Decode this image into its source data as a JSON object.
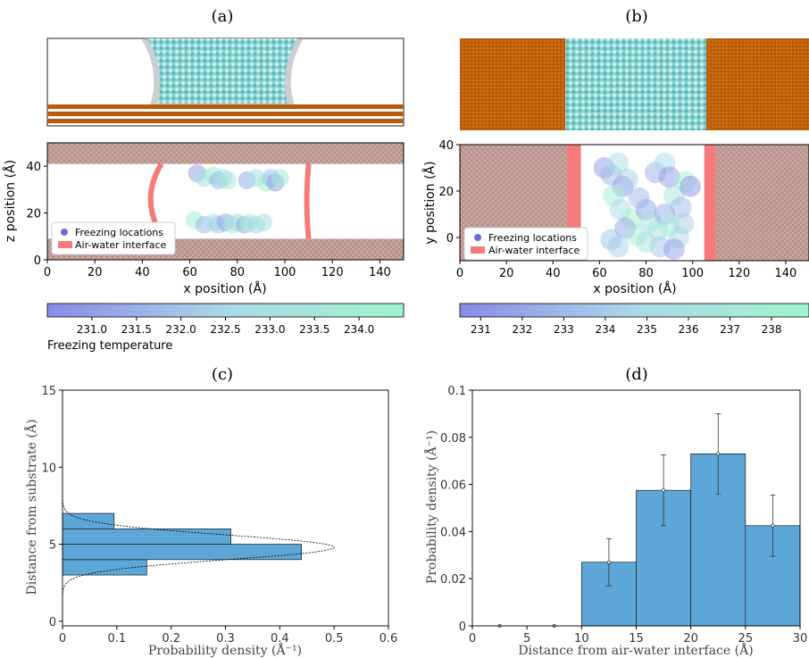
{
  "chart_data": [
    {
      "panel": "(a)",
      "type": "scatter",
      "xlabel": "x position (Å)",
      "ylabel": "z position (Å)",
      "xlim": [
        0,
        150
      ],
      "ylim": [
        0,
        50
      ],
      "xticks": [
        0,
        20,
        40,
        60,
        80,
        100,
        120,
        140
      ],
      "yticks": [
        0,
        20,
        40
      ],
      "legend_position": "lower-left",
      "legend": [
        "Freezing locations",
        "Air-water interface"
      ],
      "colorbar": {
        "label": "Freezing temperature",
        "min": 230.5,
        "max": 234.5,
        "ticks": [
          "231.0",
          "231.5",
          "232.0",
          "232.5",
          "233.0",
          "233.5",
          "234.0"
        ],
        "colors": [
          "#8a8ae8",
          "#aad8e8",
          "#a0f5cc"
        ]
      },
      "interface_color": "#f36363",
      "substrate_color": "#c9a59f",
      "points": [
        {
          "x": 63,
          "z": 37,
          "t": 231.2
        },
        {
          "x": 66,
          "z": 35,
          "t": 232.9
        },
        {
          "x": 70,
          "z": 36,
          "t": 234.1
        },
        {
          "x": 72,
          "z": 34,
          "t": 231.6
        },
        {
          "x": 74,
          "z": 35,
          "t": 232.5
        },
        {
          "x": 76,
          "z": 34,
          "t": 233.6
        },
        {
          "x": 84,
          "z": 34,
          "t": 231.4
        },
        {
          "x": 88,
          "z": 35,
          "t": 233.1
        },
        {
          "x": 92,
          "z": 33,
          "t": 234.2
        },
        {
          "x": 94,
          "z": 35,
          "t": 232.0
        },
        {
          "x": 96,
          "z": 33,
          "t": 231.1
        },
        {
          "x": 98,
          "z": 35,
          "t": 233.8
        },
        {
          "x": 62,
          "z": 17,
          "t": 234.3
        },
        {
          "x": 66,
          "z": 15,
          "t": 231.8
        },
        {
          "x": 70,
          "z": 16,
          "t": 233.2
        },
        {
          "x": 72,
          "z": 15,
          "t": 232.2
        },
        {
          "x": 75,
          "z": 16,
          "t": 231.3
        },
        {
          "x": 78,
          "z": 15,
          "t": 233.9
        },
        {
          "x": 80,
          "z": 16,
          "t": 232.7
        },
        {
          "x": 83,
          "z": 15,
          "t": 231.5
        },
        {
          "x": 85,
          "z": 16,
          "t": 234.0
        },
        {
          "x": 88,
          "z": 15,
          "t": 232.4
        },
        {
          "x": 91,
          "z": 16,
          "t": 233.4
        }
      ],
      "interfaces": [
        {
          "side": "left",
          "x_top": 48,
          "x_mid": 43,
          "x_bot": 49,
          "z_top": 41,
          "z_bot": 9
        },
        {
          "side": "right",
          "x_top": 110,
          "x_mid": 104,
          "x_bot": 110,
          "z_top": 41,
          "z_bot": 9
        }
      ],
      "substrates": [
        [
          0,
          9
        ],
        [
          41,
          50
        ]
      ]
    },
    {
      "panel": "(b)",
      "type": "scatter",
      "xlabel": "x position (Å)",
      "ylabel": "y position (Å)",
      "xlim": [
        0,
        150
      ],
      "ylim": [
        -10,
        40
      ],
      "xticks": [
        0,
        20,
        40,
        60,
        80,
        100,
        120,
        140
      ],
      "yticks": [
        0,
        20,
        40
      ],
      "legend_position": "lower-left",
      "legend": [
        "Freezing locations",
        "Air-water interface"
      ],
      "colorbar": {
        "min": 230.5,
        "max": 238.9,
        "ticks": [
          "231",
          "232",
          "233",
          "234",
          "235",
          "236",
          "237",
          "238"
        ],
        "colors": [
          "#8a8ae8",
          "#aad8e8",
          "#a0f5cc"
        ]
      },
      "interface_bands": [
        [
          46,
          52
        ],
        [
          105,
          110
        ]
      ],
      "substrates": [
        [
          0,
          46
        ],
        [
          110,
          150
        ]
      ],
      "points": [
        {
          "x": 62,
          "y": 30,
          "t": 231.5
        },
        {
          "x": 65,
          "y": 27,
          "t": 233.0
        },
        {
          "x": 68,
          "y": 32,
          "t": 236.2
        },
        {
          "x": 70,
          "y": 22,
          "t": 231.2
        },
        {
          "x": 72,
          "y": 25,
          "t": 234.1
        },
        {
          "x": 66,
          "y": 18,
          "t": 237.5
        },
        {
          "x": 69,
          "y": 12,
          "t": 235.0
        },
        {
          "x": 74,
          "y": 8,
          "t": 238.3
        },
        {
          "x": 71,
          "y": 4,
          "t": 232.0
        },
        {
          "x": 76,
          "y": 1,
          "t": 236.8
        },
        {
          "x": 68,
          "y": -4,
          "t": 234.5
        },
        {
          "x": 65,
          "y": -1,
          "t": 233.6
        },
        {
          "x": 80,
          "y": 12,
          "t": 231.8
        },
        {
          "x": 82,
          "y": 7,
          "t": 235.7
        },
        {
          "x": 85,
          "y": 3,
          "t": 237.0
        },
        {
          "x": 84,
          "y": 28,
          "t": 232.6
        },
        {
          "x": 88,
          "y": 32,
          "t": 234.9
        },
        {
          "x": 90,
          "y": 26,
          "t": 231.4
        },
        {
          "x": 92,
          "y": 18,
          "t": 236.0
        },
        {
          "x": 95,
          "y": 13,
          "t": 233.3
        },
        {
          "x": 97,
          "y": 24,
          "t": 238.0
        },
        {
          "x": 99,
          "y": 22,
          "t": 231.1
        },
        {
          "x": 88,
          "y": 10,
          "t": 232.2
        },
        {
          "x": 90,
          "y": 5,
          "t": 237.8
        },
        {
          "x": 94,
          "y": 0,
          "t": 235.3
        },
        {
          "x": 86,
          "y": -4,
          "t": 233.8
        },
        {
          "x": 80,
          "y": -2,
          "t": 236.5
        },
        {
          "x": 77,
          "y": 17,
          "t": 232.9
        },
        {
          "x": 96,
          "y": 6,
          "t": 234.2
        },
        {
          "x": 92,
          "y": -5,
          "t": 231.7
        }
      ]
    },
    {
      "panel": "(c)",
      "type": "bar",
      "orientation": "horizontal",
      "xlabel": "Probability density (Å⁻¹)",
      "ylabel": "Distance from substrate (Å)",
      "xlim": [
        0,
        0.6
      ],
      "ylim": [
        -0.3,
        15
      ],
      "xticks": [
        "0",
        "0.1",
        "0.2",
        "0.3",
        "0.4",
        "0.5",
        "0.6"
      ],
      "yticks": [
        "0",
        "5",
        "10",
        "15"
      ],
      "bins": [
        {
          "from": 3,
          "to": 4,
          "value": 0.155
        },
        {
          "from": 4,
          "to": 5,
          "value": 0.44
        },
        {
          "from": 5,
          "to": 6,
          "value": 0.31
        },
        {
          "from": 6,
          "to": 7,
          "value": 0.095
        }
      ],
      "fit_curve": {
        "type": "gaussian",
        "mean": 4.8,
        "sd": 0.8,
        "peak": 0.5
      },
      "bar_color": "#5ca7d8"
    },
    {
      "panel": "(d)",
      "type": "bar",
      "xlabel": "Distance from air-water interface (Å)",
      "ylabel": "Probability density (Å⁻¹)",
      "xlim": [
        0,
        30
      ],
      "ylim": [
        0,
        0.1
      ],
      "xticks": [
        "0",
        "5",
        "10",
        "15",
        "20",
        "25",
        "30"
      ],
      "yticks": [
        "0",
        "0.02",
        "0.04",
        "0.06",
        "0.08",
        "0.1"
      ],
      "bins": [
        {
          "from": 0,
          "to": 5,
          "value": 0,
          "err": 0
        },
        {
          "from": 5,
          "to": 10,
          "value": 0,
          "err": 0
        },
        {
          "from": 10,
          "to": 15,
          "value": 0.027,
          "err": 0.01
        },
        {
          "from": 15,
          "to": 20,
          "value": 0.0575,
          "err": 0.015
        },
        {
          "from": 20,
          "to": 25,
          "value": 0.073,
          "err": 0.017
        },
        {
          "from": 25,
          "to": 30,
          "value": 0.0425,
          "err": 0.013
        }
      ],
      "bar_color": "#5ca7d8"
    }
  ]
}
